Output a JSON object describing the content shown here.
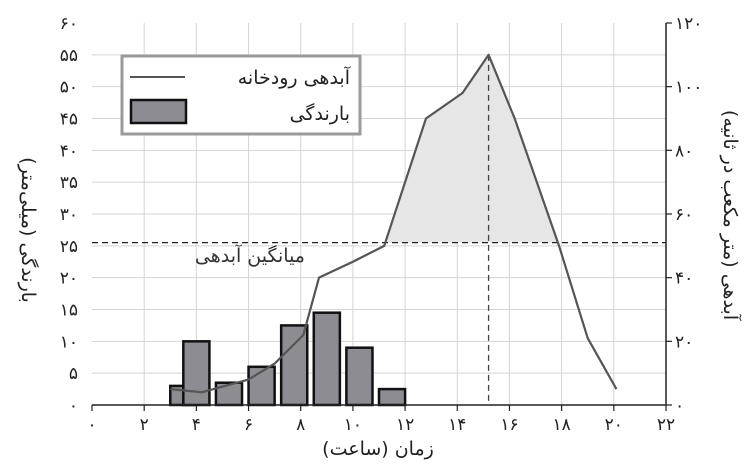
{
  "chart_data": {
    "type": "bar",
    "xlabel": "زمان (ساعت)",
    "ylabel_left": "بارندگی (میلی‌متر)",
    "ylabel_right": "آبدهی (متر مکعب در ثانیه)",
    "xlim": [
      0,
      22
    ],
    "ylim_left": [
      0,
      60
    ],
    "ylim_right": [
      0,
      120
    ],
    "x_ticks": [
      0,
      2,
      4,
      6,
      8,
      10,
      12,
      14,
      16,
      18,
      20,
      22
    ],
    "x_tick_labels": [
      "۰",
      "۲",
      "۴",
      "۶",
      "۸",
      "۱۰",
      "۱۲",
      "۱۴",
      "۱۶",
      "۱۸",
      "۲۰",
      "۲۲"
    ],
    "y_left_ticks": [
      0,
      5,
      10,
      15,
      20,
      25,
      30,
      35,
      40,
      45,
      50,
      55,
      60
    ],
    "y_left_tick_labels": [
      "۰",
      "۵",
      "۱۰",
      "۱۵",
      "۲۰",
      "۲۵",
      "۳۰",
      "۳۵",
      "۴۰",
      "۴۵",
      "۵۰",
      "۵۵",
      "۶۰"
    ],
    "y_right_ticks": [
      0,
      20,
      40,
      60,
      80,
      100,
      120
    ],
    "y_right_tick_labels": [
      "۰",
      "۲۰",
      "۴۰",
      "۶۰",
      "۸۰",
      "۱۰۰",
      "۱۲۰"
    ],
    "grid": true,
    "legend_placement": "top-left",
    "legend": {
      "line_label": "آبدهی رودخانه",
      "bar_label": "بارندگی"
    },
    "rainfall": {
      "name": "بارندگی",
      "axis": "left",
      "bin_width": 1,
      "x_start": [
        3,
        3.5,
        4.75,
        6,
        7.25,
        8.5,
        9.75,
        11
      ],
      "values": [
        3,
        10,
        3.5,
        6,
        12.5,
        14.5,
        9,
        2.5
      ]
    },
    "discharge": {
      "name": "آبدهی رودخانه",
      "axis": "right",
      "x": [
        3,
        4.2,
        6,
        7,
        8.1,
        8.7,
        10,
        11.2,
        12.8,
        14.2,
        15.2,
        16.2,
        17.9,
        19,
        20.1
      ],
      "y": [
        5,
        4,
        8,
        13,
        22,
        40,
        45,
        50,
        90,
        98,
        110,
        90,
        50,
        21,
        5
      ]
    },
    "mean_discharge": {
      "label": "میانگین آبدهی",
      "value": 51
    },
    "peak_time": 15.2,
    "colors": {
      "bars": "#8c8c92",
      "line": "#555555",
      "shade": "#e6e6e6",
      "grid": "#d4d4d4"
    }
  }
}
